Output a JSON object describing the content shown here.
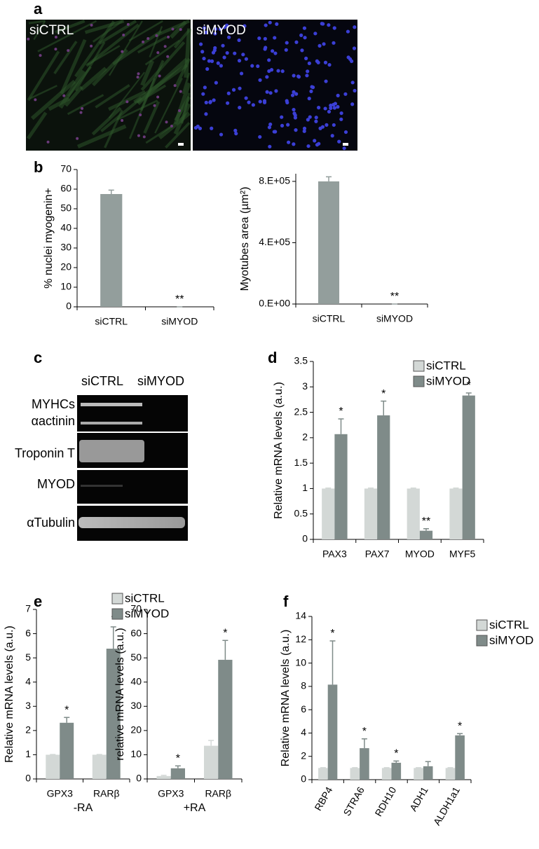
{
  "panels": [
    "a",
    "b",
    "c",
    "d",
    "e",
    "f"
  ],
  "images": [
    "siCTRL",
    "siMYOD"
  ],
  "blot": {
    "columns": [
      "siCTRL",
      "siMYOD"
    ],
    "rows": [
      "MYHCs",
      "αactinin",
      "Troponin T",
      "MYOD",
      "αTubulin"
    ]
  },
  "chart_data": [
    {
      "type": "bar",
      "ylabel": "% nuclei myogenin+",
      "categories": [
        "siCTRL",
        "siMYOD"
      ],
      "series": [
        {
          "color": "#939e9c",
          "values": [
            57.5,
            0
          ],
          "errors": [
            2,
            0
          ]
        }
      ],
      "annotations": [
        null,
        "**"
      ],
      "ylim": [
        0,
        70
      ],
      "yticks": [
        0,
        10,
        20,
        30,
        40,
        50,
        60,
        70
      ]
    },
    {
      "type": "bar",
      "ylabel": "Myotubes area (µm²)",
      "categories": [
        "siCTRL",
        "siMYOD"
      ],
      "series": [
        {
          "color": "#939e9c",
          "values": [
            800000,
            0
          ],
          "errors": [
            30000,
            0
          ]
        }
      ],
      "annotations": [
        null,
        "**"
      ],
      "ylim": [
        0,
        850000
      ],
      "yticks": [
        {
          "value": 0,
          "label": "0.E+00"
        },
        {
          "value": 400000,
          "label": "4.E+05"
        },
        {
          "value": 800000,
          "label": "8.E+05"
        }
      ]
    },
    {
      "type": "bar",
      "ylabel": "Relative mRNA levels (a.u.)",
      "categories": [
        "PAX3",
        "PAX7",
        "MYOD",
        "MYF5"
      ],
      "series": [
        {
          "name": "siCTRL",
          "color": "#d3d8d6",
          "values": [
            1,
            1,
            1,
            1
          ],
          "errors": [
            0.01,
            0.01,
            0.01,
            0.01
          ]
        },
        {
          "name": "siMYOD",
          "color": "#7f8b89",
          "values": [
            2.07,
            2.44,
            0.17,
            2.83
          ],
          "errors": [
            0.3,
            0.28,
            0.04,
            0.05
          ]
        }
      ],
      "annotations": [
        "*",
        "*",
        "**",
        "*"
      ],
      "legend": true,
      "ylim": [
        0,
        3.5
      ],
      "yticks": [
        0,
        0.5,
        1,
        1.5,
        2,
        2.5,
        3,
        3.5
      ]
    },
    {
      "type": "bar",
      "ylabel": "Relative mRNA levels (a.u.)",
      "xlabel": "-RA",
      "categories": [
        "GPX3",
        "RARβ"
      ],
      "series": [
        {
          "name": "siCTRL",
          "color": "#d3d8d6",
          "values": [
            1,
            1
          ],
          "errors": [
            0.01,
            0.01
          ]
        },
        {
          "name": "siMYOD",
          "color": "#7f8b89",
          "values": [
            2.32,
            5.38
          ],
          "errors": [
            0.22,
            0.9
          ]
        }
      ],
      "annotations": [
        "*",
        "*"
      ],
      "legend": true,
      "ylim": [
        0,
        7
      ],
      "yticks": [
        0,
        1,
        2,
        3,
        4,
        5,
        6,
        7
      ]
    },
    {
      "type": "bar",
      "ylabel": "relative mRNA levels (a.u.)",
      "xlabel": "+RA",
      "categories": [
        "GPX3",
        "RARβ"
      ],
      "series": [
        {
          "color": "#d3d8d6",
          "values": [
            1.2,
            13.7
          ],
          "errors": [
            0.3,
            2.2
          ]
        },
        {
          "color": "#7f8b89",
          "values": [
            4.4,
            49.2
          ],
          "errors": [
            1,
            8
          ]
        }
      ],
      "annotations": [
        "*",
        "*"
      ],
      "ylim": [
        0,
        70
      ],
      "yticks": [
        0,
        10,
        20,
        30,
        40,
        50,
        60,
        70
      ]
    },
    {
      "type": "bar",
      "ylabel": "Relative mRNA levels (a.u.)",
      "categories": [
        "RBP4",
        "STRA6",
        "RDH10",
        "ADH1",
        "ALDH1a1"
      ],
      "series": [
        {
          "name": "siCTRL",
          "color": "#d3d8d6",
          "values": [
            1,
            1,
            1,
            1,
            1
          ],
          "errors": [
            0.03,
            0.03,
            0.03,
            0.03,
            0.03
          ]
        },
        {
          "name": "siMYOD",
          "color": "#7f8b89",
          "values": [
            8.15,
            2.7,
            1.45,
            1.15,
            3.8
          ],
          "errors": [
            3.75,
            0.8,
            0.15,
            0.4,
            0.15
          ]
        }
      ],
      "annotations": [
        "*",
        "*",
        "*",
        null,
        "*"
      ],
      "legend": true,
      "ylim": [
        0,
        14
      ],
      "yticks": [
        0,
        2,
        4,
        6,
        8,
        10,
        12,
        14
      ]
    }
  ]
}
